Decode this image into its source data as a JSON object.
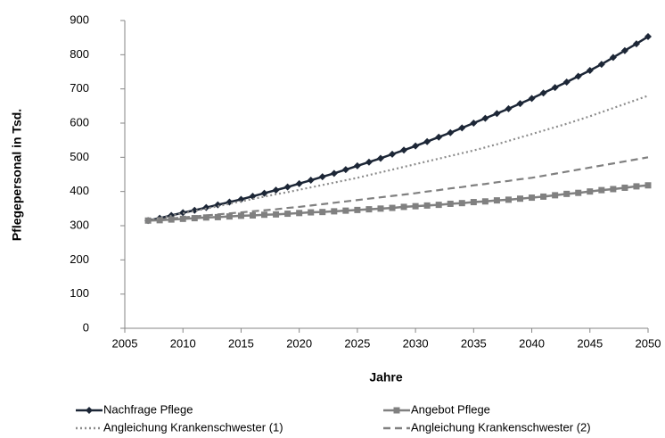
{
  "chart_data": {
    "type": "line",
    "y_label": "Pflegepersonal in Tsd.",
    "x_label": "Jahre",
    "x": [
      2007,
      2008,
      2009,
      2010,
      2011,
      2012,
      2013,
      2014,
      2015,
      2016,
      2017,
      2018,
      2019,
      2020,
      2021,
      2022,
      2023,
      2024,
      2025,
      2026,
      2027,
      2028,
      2029,
      2030,
      2031,
      2032,
      2033,
      2034,
      2035,
      2036,
      2037,
      2038,
      2039,
      2040,
      2041,
      2042,
      2043,
      2044,
      2045,
      2046,
      2047,
      2048,
      2049,
      2050
    ],
    "series": [
      {
        "name": "Nachfrage Pflege",
        "color": "#1c2636",
        "marker": "diamond",
        "dash": "solid",
        "values": [
          315,
          322,
          330,
          338,
          345,
          353,
          361,
          369,
          377,
          386,
          395,
          404,
          413,
          423,
          433,
          443,
          453,
          464,
          475,
          486,
          497,
          509,
          521,
          533,
          546,
          559,
          572,
          586,
          600,
          614,
          628,
          642,
          657,
          672,
          688,
          704,
          720,
          737,
          754,
          772,
          792,
          812,
          832,
          853
        ]
      },
      {
        "name": "Angebot Pflege",
        "color": "#808080",
        "marker": "square",
        "dash": "solid",
        "values": [
          315,
          316,
          318,
          320,
          322,
          324,
          325,
          327,
          329,
          330,
          332,
          333,
          335,
          337,
          339,
          340,
          342,
          344,
          346,
          348,
          350,
          352,
          355,
          357,
          359,
          361,
          364,
          366,
          369,
          371,
          374,
          376,
          379,
          382,
          385,
          389,
          393,
          396,
          400,
          404,
          407,
          411,
          415,
          418
        ]
      },
      {
        "name": "Angleichung Krankenschwester (1)",
        "color": "#8c8c8c",
        "marker": "none",
        "dash": "dotted",
        "values": [
          315,
          322,
          329,
          336,
          343,
          350,
          357,
          364,
          371,
          378,
          385,
          392,
          398,
          405,
          412,
          419,
          426,
          433,
          440,
          448,
          456,
          464,
          472,
          480,
          488,
          496,
          504,
          512,
          520,
          529,
          538,
          548,
          558,
          568,
          578,
          588,
          598,
          609,
          620,
          632,
          644,
          656,
          668,
          680
        ]
      },
      {
        "name": "Angleichung Krankenschwester (2)",
        "color": "#808080",
        "marker": "none",
        "dash": "dashed",
        "values": [
          315,
          318,
          321,
          324,
          327,
          330,
          333,
          336,
          339,
          342,
          345,
          348,
          352,
          355,
          359,
          363,
          367,
          371,
          375,
          379,
          383,
          387,
          391,
          395,
          400,
          404,
          409,
          413,
          418,
          422,
          427,
          431,
          436,
          440,
          446,
          452,
          458,
          464,
          470,
          476,
          482,
          488,
          494,
          500
        ]
      }
    ],
    "xlim": [
      2005,
      2050
    ],
    "xticks": [
      2005,
      2010,
      2015,
      2020,
      2025,
      2030,
      2035,
      2040,
      2045,
      2050
    ],
    "ylim": [
      0,
      900
    ],
    "yticks": [
      0,
      100,
      200,
      300,
      400,
      500,
      600,
      700,
      800,
      900
    ],
    "grid": false,
    "legend": "bottom"
  }
}
